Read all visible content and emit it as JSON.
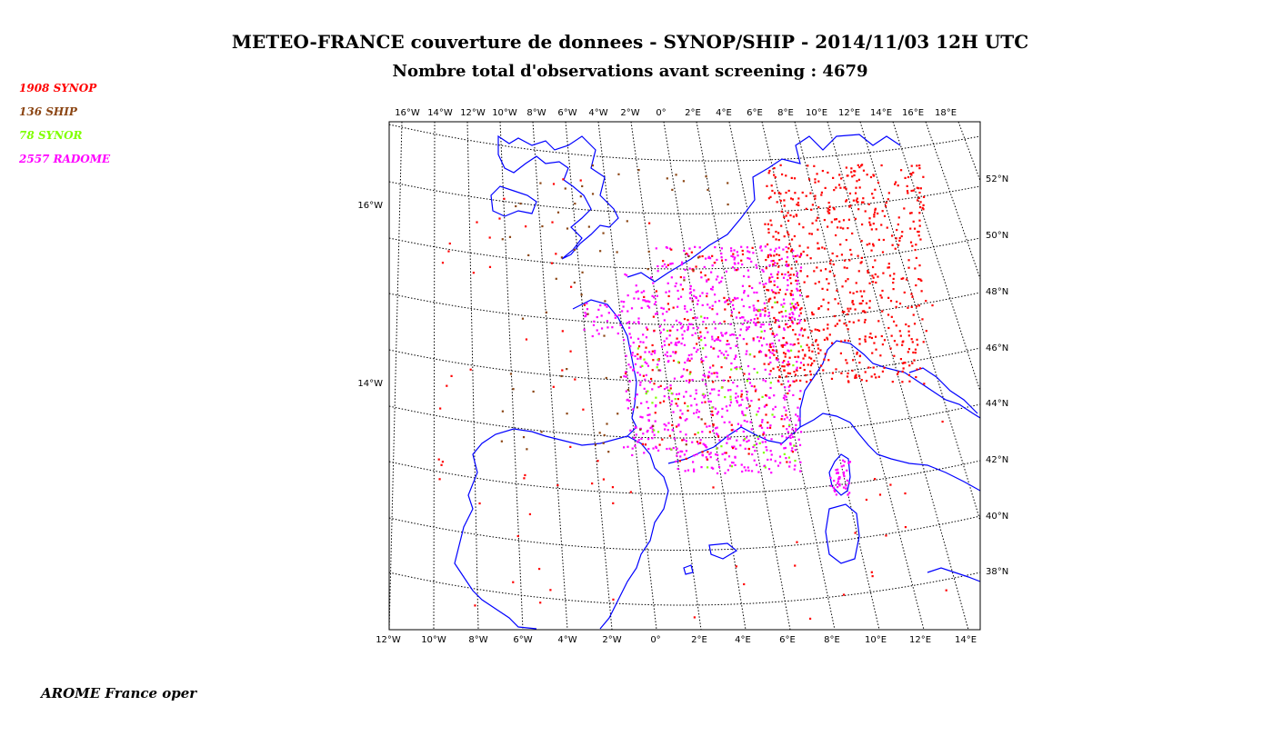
{
  "title": "METEO-FRANCE couverture de donnees - SYNOP/SHIP - 2014/11/03 12H UTC",
  "subtitle": "Nombre total d'observations avant screening : 4679",
  "legend": [
    {
      "label": "1908  SYNOP",
      "color": "#ff0000"
    },
    {
      "label": "136  SHIP",
      "color": "#8b4513"
    },
    {
      "label": "78  SYNOR",
      "color": "#80ff00"
    },
    {
      "label": "2557  RADOME",
      "color": "#ff00ff"
    }
  ],
  "top_ticks": [
    "16°W",
    "14°W",
    "12°W",
    "10°W",
    "8°W",
    "6°W",
    "4°W",
    "2°W",
    "0°",
    "2°E",
    "4°E",
    "6°E",
    "8°E",
    "10°E",
    "12°E",
    "14°E",
    "16°E",
    "18°E"
  ],
  "bottom_ticks": [
    "12°W",
    "10°W",
    "8°W",
    "6°W",
    "4°W",
    "2°W",
    "0°",
    "2°E",
    "4°E",
    "6°E",
    "8°E",
    "10°E",
    "12°E",
    "14°E"
  ],
  "right_ticks": [
    "52°N",
    "50°N",
    "48°N",
    "46°N",
    "44°N",
    "42°N",
    "40°N",
    "38°N"
  ],
  "left_ticks": [
    "16°W",
    "14°W"
  ],
  "colors": {
    "coast": "#0000ff",
    "grid": "#000000"
  },
  "footer": "AROME France oper"
}
